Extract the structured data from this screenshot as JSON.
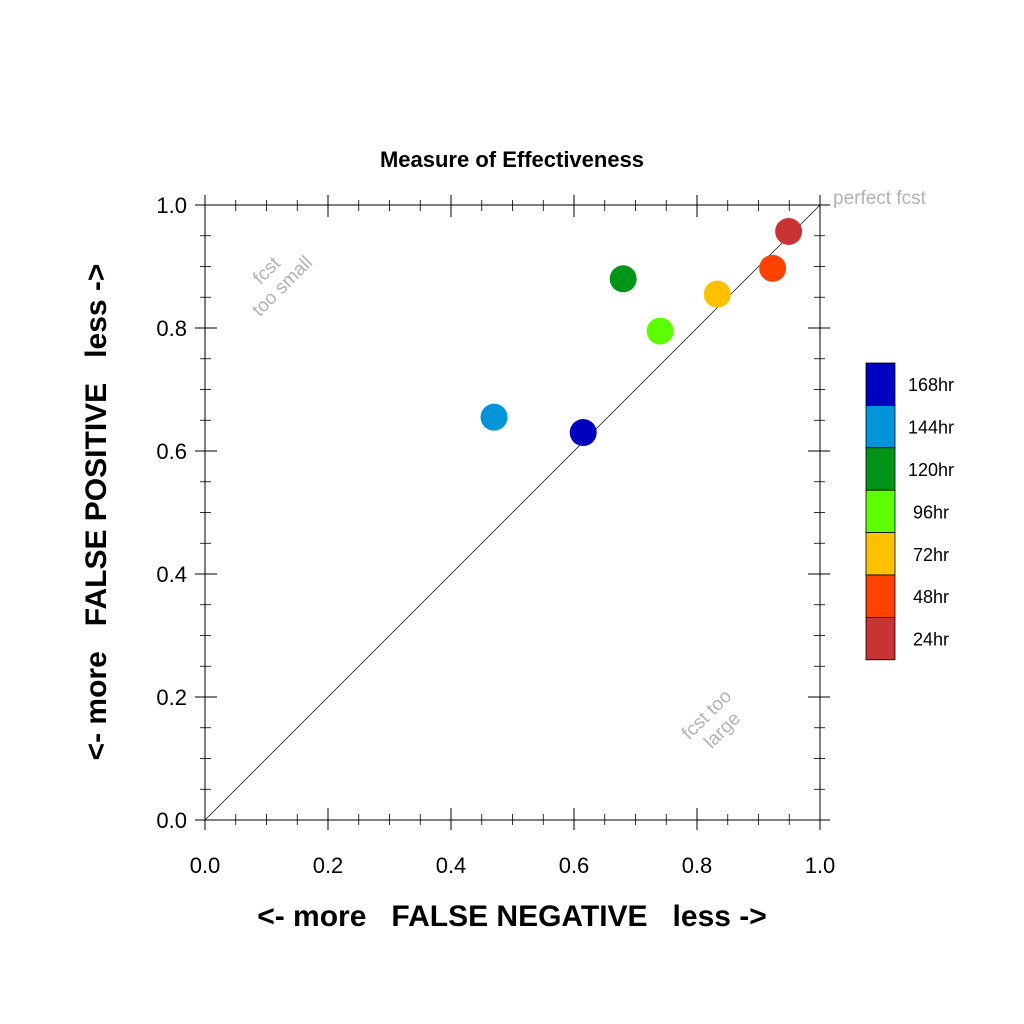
{
  "chart_data": {
    "type": "scatter",
    "title": "Measure of Effectiveness",
    "xlabel": "<- more   FALSE NEGATIVE   less ->",
    "ylabel": "<- more   FALSE POSITIVE   less ->",
    "xlim": [
      0.0,
      1.0
    ],
    "ylim": [
      0.0,
      1.0
    ],
    "xticks": [
      "0.0",
      "0.2",
      "0.4",
      "0.6",
      "0.8",
      "1.0"
    ],
    "yticks": [
      "0.0",
      "0.2",
      "0.4",
      "0.6",
      "0.8",
      "1.0"
    ],
    "grid": false,
    "diagonal_reference_line": true,
    "annotations": {
      "perfect": "perfect fcst",
      "too_small_line1": "fcst",
      "too_small_line2": "too small",
      "too_large_line1": "fcst too",
      "too_large_line2": "large"
    },
    "legend_position": "right",
    "series": [
      {
        "name": "168hr",
        "color": "#0000c0",
        "x": 0.615,
        "y": 0.63
      },
      {
        "name": "144hr",
        "color": "#0095d9",
        "x": 0.47,
        "y": 0.655
      },
      {
        "name": "120hr",
        "color": "#009419",
        "x": 0.68,
        "y": 0.88
      },
      {
        "name": "96hr",
        "color": "#5cff00",
        "x": 0.74,
        "y": 0.795
      },
      {
        "name": "72hr",
        "color": "#ffc000",
        "x": 0.833,
        "y": 0.855
      },
      {
        "name": "48hr",
        "color": "#ff4200",
        "x": 0.923,
        "y": 0.897
      },
      {
        "name": "24hr",
        "color": "#c83333",
        "x": 0.949,
        "y": 0.957
      }
    ]
  }
}
